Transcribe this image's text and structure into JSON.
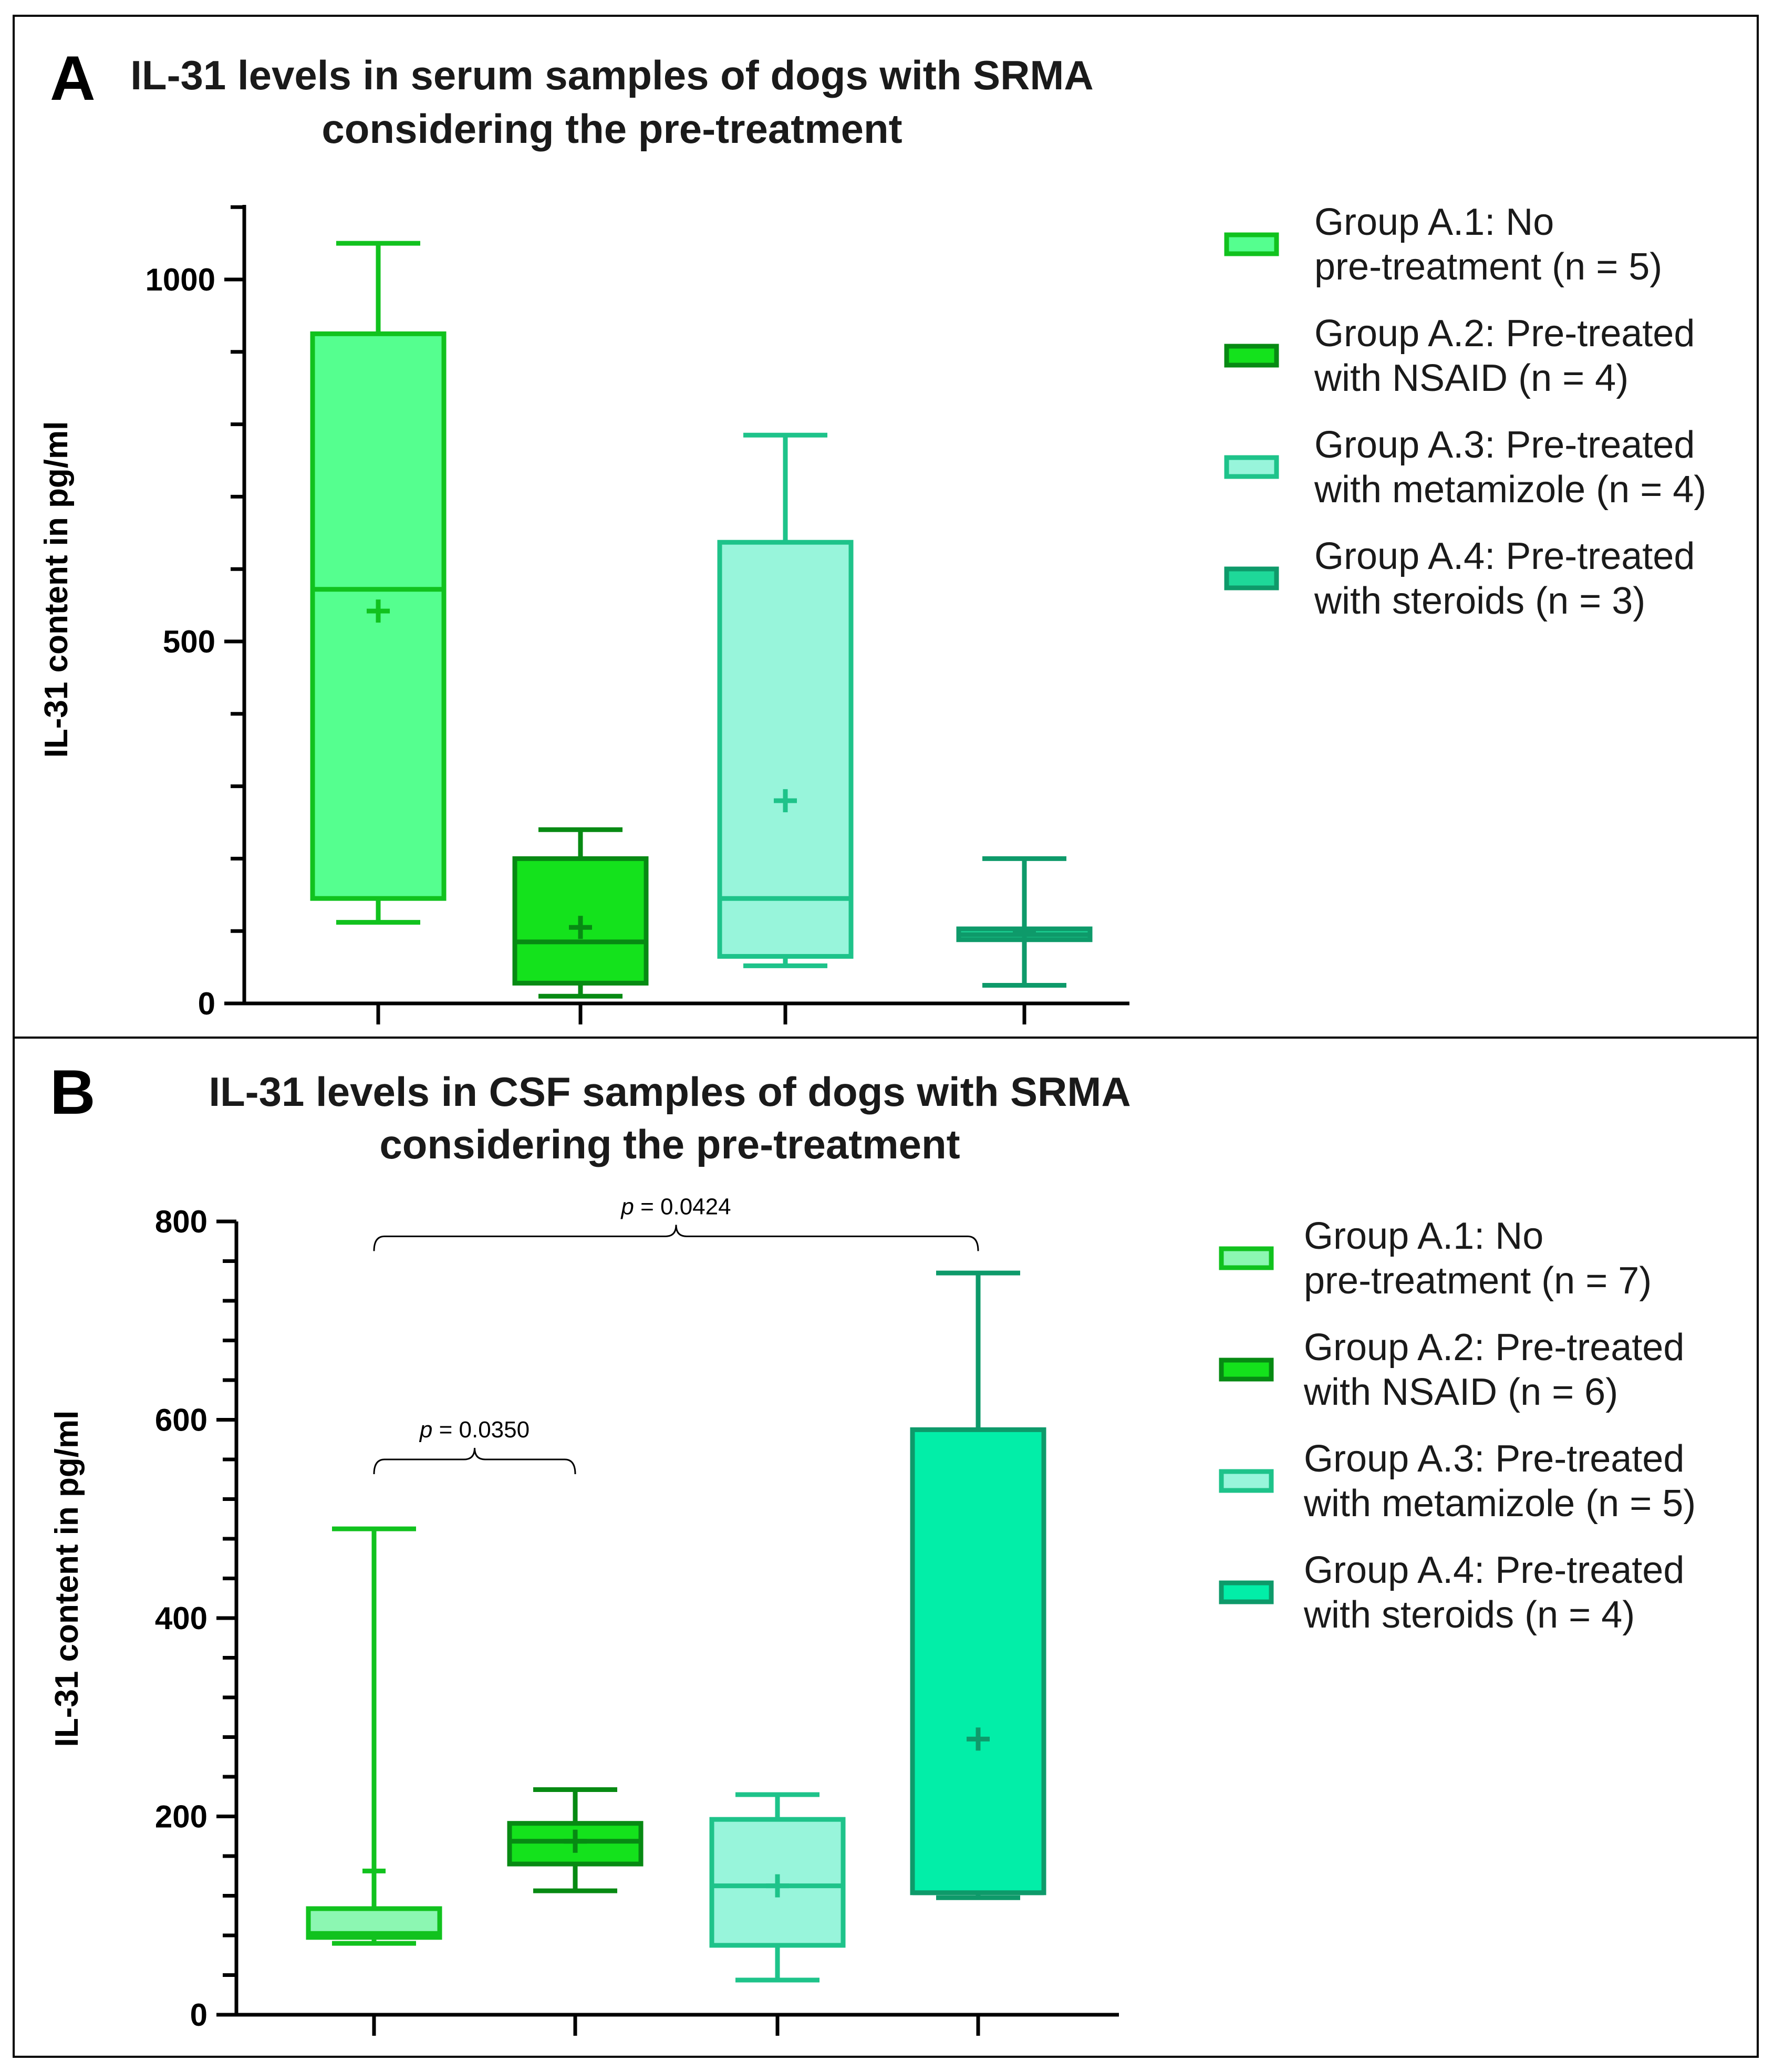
{
  "chart_data": [
    {
      "type": "box",
      "panel_label": "A",
      "title": [
        "IL-31 levels in serum samples of dogs with SRMA",
        "considering the pre-treatment"
      ],
      "ylabel": "IL-31 content in pg/ml",
      "xlabel": "",
      "ylim": [
        0,
        1100
      ],
      "yticks": [
        0,
        500,
        1000
      ],
      "minor_step": 100,
      "series": [
        {
          "name": "Group A.1: No pre-treatment (n = 5)",
          "legend_lines": [
            "Group A.1: No",
            "pre-treatment (n = 5)"
          ],
          "color": "#11c21e",
          "fill": "#55ff8f",
          "whisker_low": 112,
          "q1": 145,
          "median": 572,
          "q3": 925,
          "whisker_high": 1050,
          "mean": 542
        },
        {
          "name": "Group A.2: Pre-treated with NSAID (n = 4)",
          "legend_lines": [
            "Group A.2: Pre-treated",
            "with NSAID (n = 4)"
          ],
          "color": "#078a13",
          "fill": "#14e21c",
          "whisker_low": 10,
          "q1": 28,
          "median": 85,
          "q3": 200,
          "whisker_high": 240,
          "mean": 105
        },
        {
          "name": "Group A.3: Pre-treated with metamizole (n = 4)",
          "legend_lines": [
            "Group A.3: Pre-treated",
            "with metamizole (n = 4)"
          ],
          "color": "#1ec38a",
          "fill": "#98f5db",
          "whisker_low": 52,
          "q1": 65,
          "median": 145,
          "q3": 637,
          "whisker_high": 785,
          "mean": 280
        },
        {
          "name": "Group A.4: Pre-treated with steroids (n = 3)",
          "legend_lines": [
            "Group A.4: Pre-treated",
            "with steroids (n = 3)"
          ],
          "color": "#0e9a6a",
          "fill": "#1ed899",
          "whisker_low": 25,
          "q1": 88,
          "median": 95,
          "q3": 103,
          "whisker_high": 200,
          "mean": 100
        }
      ],
      "comparisons": []
    },
    {
      "type": "box",
      "panel_label": "B",
      "title": [
        "IL-31 levels in CSF samples of dogs with SRMA",
        "considering the pre-treatment"
      ],
      "ylabel": "IL-31 content in pg/ml",
      "xlabel": "",
      "ylim": [
        0,
        800
      ],
      "yticks": [
        0,
        200,
        400,
        600,
        800
      ],
      "minor_step": 40,
      "series": [
        {
          "name": "Group A.1: No pre-treatment (n = 7)",
          "legend_lines": [
            "Group A.1: No",
            "pre-treatment (n = 7)"
          ],
          "color": "#11c21e",
          "fill": "#8cf7b2",
          "whisker_low": 72,
          "q1": 78,
          "median": 82,
          "q3": 107,
          "whisker_high": 490,
          "mean": 145
        },
        {
          "name": "Group A.2: Pre-treated with NSAID (n = 6)",
          "legend_lines": [
            "Group A.2: Pre-treated",
            "with NSAID (n = 6)"
          ],
          "color": "#078a13",
          "fill": "#14e21c",
          "whisker_low": 125,
          "q1": 152,
          "median": 175,
          "q3": 193,
          "whisker_high": 227,
          "mean": 175
        },
        {
          "name": "Group A.3: Pre-treated with metamizole (n = 5)",
          "legend_lines": [
            "Group A.3: Pre-treated",
            "with metamizole (n = 5)"
          ],
          "color": "#1ec38a",
          "fill": "#98f5db",
          "whisker_low": 35,
          "q1": 70,
          "median": 130,
          "q3": 197,
          "whisker_high": 222,
          "mean": 130
        },
        {
          "name": "Group A.4: Pre-treated with steroids (n = 4)",
          "legend_lines": [
            "Group A.4: Pre-treated",
            "with steroids (n = 4)"
          ],
          "color": "#0e9a6a",
          "fill": "#02eea8",
          "whisker_low": 118,
          "q1": 123,
          "median": 123,
          "q3": 590,
          "whisker_high": 748,
          "mean": 278
        }
      ],
      "comparisons": [
        {
          "from": 0,
          "to": 3,
          "p_label": "p",
          "p_value": "= 0.0424",
          "level": 785
        },
        {
          "from": 0,
          "to": 1,
          "p_label": "p",
          "p_value": "= 0.0350",
          "level": 560
        }
      ]
    }
  ]
}
